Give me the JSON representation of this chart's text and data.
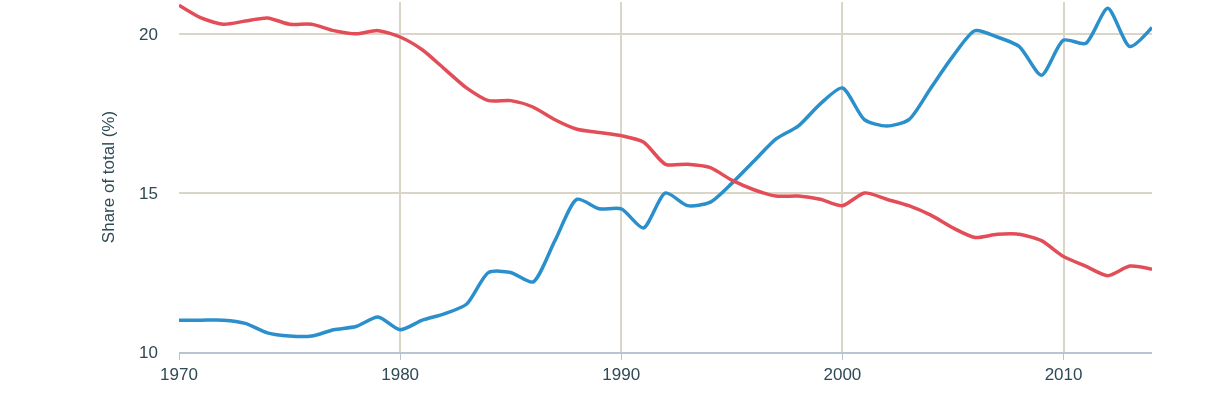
{
  "chart_data": {
    "type": "line",
    "ylabel": "Share of total (%)",
    "x": [
      1970,
      1971,
      1972,
      1973,
      1974,
      1975,
      1976,
      1977,
      1978,
      1979,
      1980,
      1981,
      1982,
      1983,
      1984,
      1985,
      1986,
      1987,
      1988,
      1989,
      1990,
      1991,
      1992,
      1993,
      1994,
      1995,
      1996,
      1997,
      1998,
      1999,
      2000,
      2001,
      2002,
      2003,
      2004,
      2005,
      2006,
      2007,
      2008,
      2009,
      2010,
      2011,
      2012,
      2013,
      2014
    ],
    "series": [
      {
        "color": "#2a8fcb",
        "values": [
          11.0,
          11.0,
          11.0,
          10.9,
          10.6,
          10.5,
          10.5,
          10.7,
          10.8,
          11.1,
          10.7,
          11.0,
          11.2,
          11.5,
          12.5,
          12.5,
          12.2,
          13.5,
          14.8,
          14.5,
          14.5,
          13.9,
          15.0,
          14.6,
          14.7,
          15.3,
          16.0,
          16.7,
          17.1,
          17.8,
          18.3,
          17.3,
          17.1,
          17.3,
          18.3,
          19.3,
          20.1,
          19.9,
          19.6,
          18.7,
          19.8,
          19.7,
          20.8,
          19.6,
          20.2
        ]
      },
      {
        "color": "#e24d57",
        "values": [
          20.9,
          20.5,
          20.3,
          20.4,
          20.5,
          20.3,
          20.3,
          20.1,
          20.0,
          20.1,
          19.9,
          19.5,
          18.9,
          18.3,
          17.9,
          17.9,
          17.7,
          17.3,
          17.0,
          16.9,
          16.8,
          16.6,
          15.9,
          15.9,
          15.8,
          15.4,
          15.1,
          14.9,
          14.9,
          14.8,
          14.6,
          15.0,
          14.8,
          14.6,
          14.3,
          13.9,
          13.6,
          13.7,
          13.7,
          13.5,
          13.0,
          12.7,
          12.4,
          12.7,
          12.6
        ]
      }
    ],
    "xlim": [
      1970,
      2014
    ],
    "xticks": [
      1970,
      1980,
      1990,
      2000,
      2010
    ],
    "ylim": [
      10,
      21
    ],
    "yticks": [
      10,
      15,
      20
    ],
    "grid": true,
    "marker": "none",
    "line_style": "solid"
  }
}
